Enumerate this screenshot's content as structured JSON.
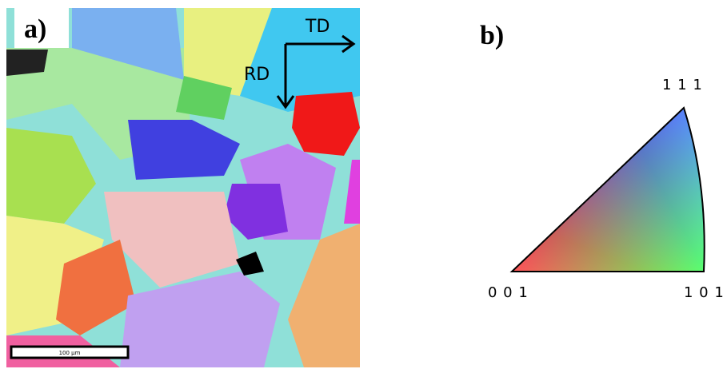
{
  "panel_a": {
    "label": "a)",
    "td": "TD",
    "rd": "RD",
    "scale_bar": "100 µm"
  },
  "panel_b": {
    "label": "b)",
    "corner_111": "1 1 1",
    "corner_001": "0 0 1",
    "corner_101": "1 0 1"
  }
}
